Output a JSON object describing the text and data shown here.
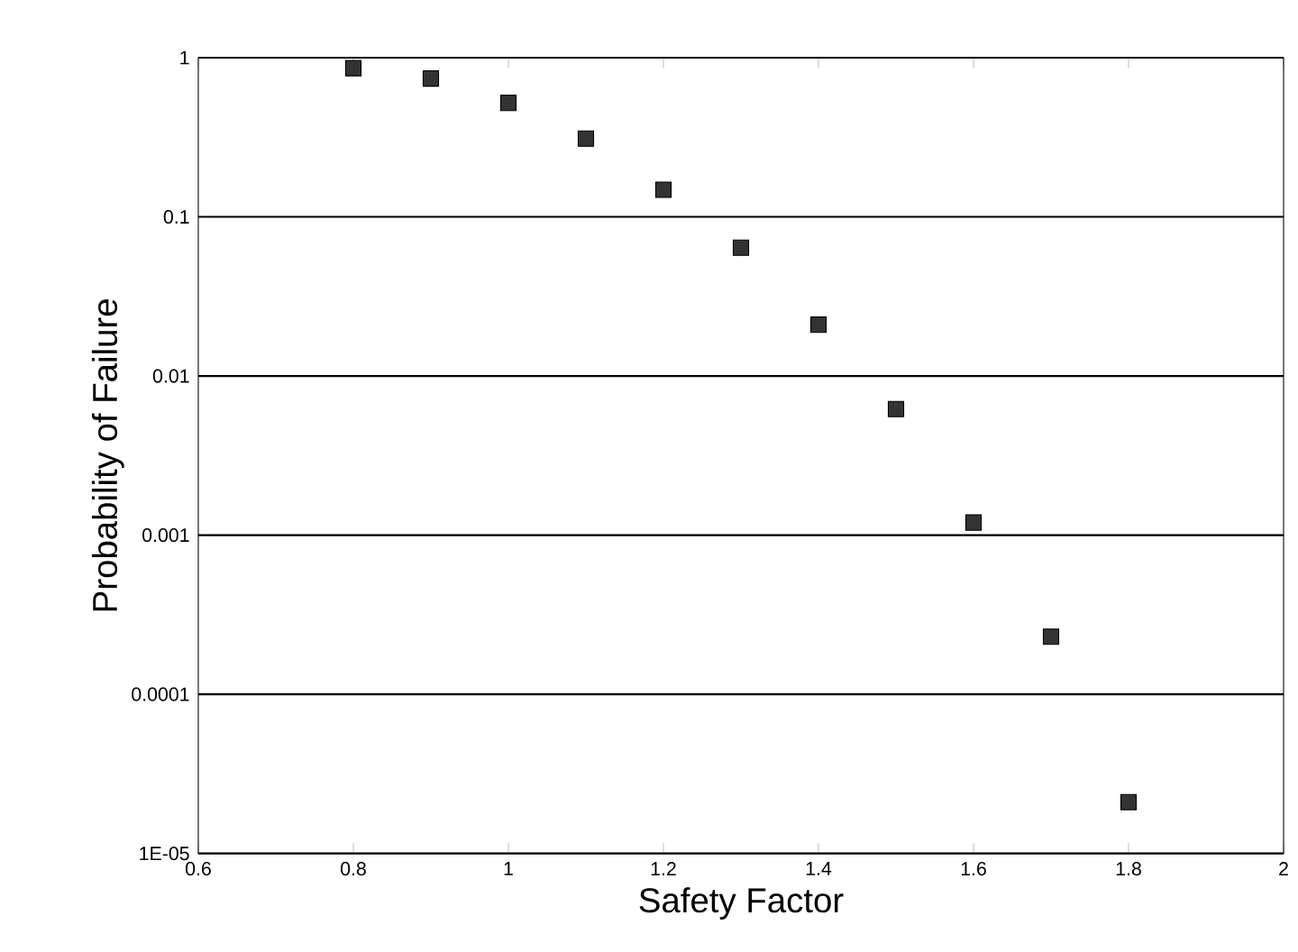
{
  "chart_data": {
    "type": "scatter",
    "xlabel": "Safety Factor",
    "ylabel": "Probability of Failure",
    "x": [
      0.8,
      0.9,
      1.0,
      1.1,
      1.2,
      1.3,
      1.4,
      1.5,
      1.6,
      1.7,
      1.8
    ],
    "series": [
      {
        "color": "#333333",
        "values": [
          0.86,
          0.74,
          0.52,
          0.31,
          0.148,
          0.064,
          0.021,
          0.0062,
          0.0012,
          0.00023,
          2.1e-05
        ]
      }
    ],
    "xlim": [
      0.6,
      2
    ],
    "ylim": [
      1e-05,
      1
    ],
    "log": "y",
    "xticks": [
      0.6,
      0.8,
      1,
      1.2,
      1.4,
      1.6,
      1.8,
      2
    ],
    "yticks": [
      {
        "value": 1e-05,
        "label": "1E-05"
      },
      {
        "value": 0.0001,
        "label": "0.0001"
      },
      {
        "value": 0.001,
        "label": "0.001"
      },
      {
        "value": 0.01,
        "label": "0.01"
      },
      {
        "value": 0.1,
        "label": "0.1"
      },
      {
        "value": 1,
        "label": "1"
      }
    ],
    "grid": "y",
    "marker": "square"
  }
}
